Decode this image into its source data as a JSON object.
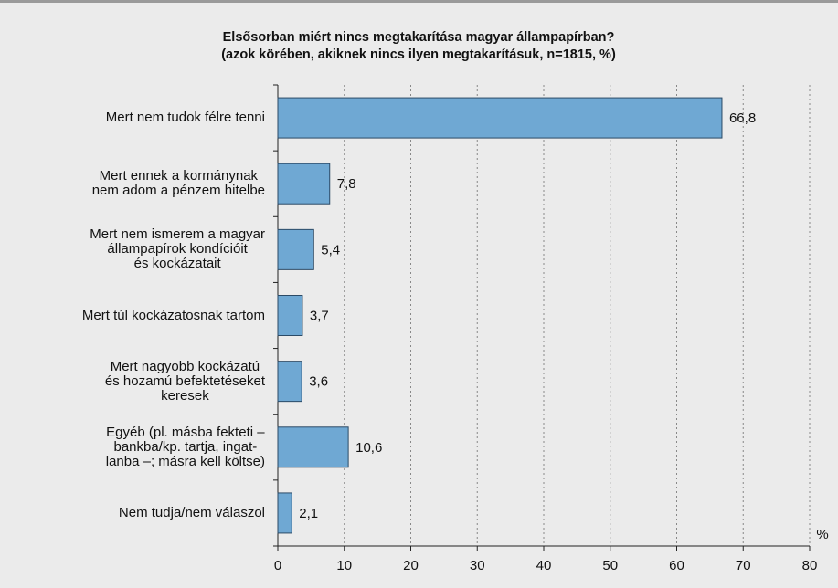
{
  "chart_data": {
    "type": "hbar",
    "title": "Elsősorban miért nincs megtakarítása magyar állampapírban?",
    "subtitle": "(azok körében, akiknek nincs ilyen megtakarításuk, n=1815, %)",
    "categories": [
      "Mert nem tudok félre tenni",
      "Mert ennek a kormánynak\nnem adom a pénzem hitelbe",
      "Mert nem ismerem a magyar\nállampapírok kondícióit\nés kockázatait",
      "Mert túl kockázatosnak tartom",
      "Mert nagyobb kockázatú\nés hozamú befektetéseket\nkeresek",
      "Egyéb (pl. másba fekteti –\nbankba/kp. tartja, ingat-\nlanba –; másra kell költse)",
      "Nem tudja/nem válaszol"
    ],
    "values": [
      66.8,
      7.8,
      5.4,
      3.7,
      3.6,
      10.6,
      2.1
    ],
    "value_labels": [
      "66,8",
      "7,8",
      "5,4",
      "3,7",
      "3,6",
      "10,6",
      "2,1"
    ],
    "color": "#6fa8d3",
    "xlabel": "%",
    "xlim": [
      0,
      80
    ],
    "xticks": [
      0,
      10,
      20,
      30,
      40,
      50,
      60,
      70,
      80
    ],
    "grid": true
  }
}
